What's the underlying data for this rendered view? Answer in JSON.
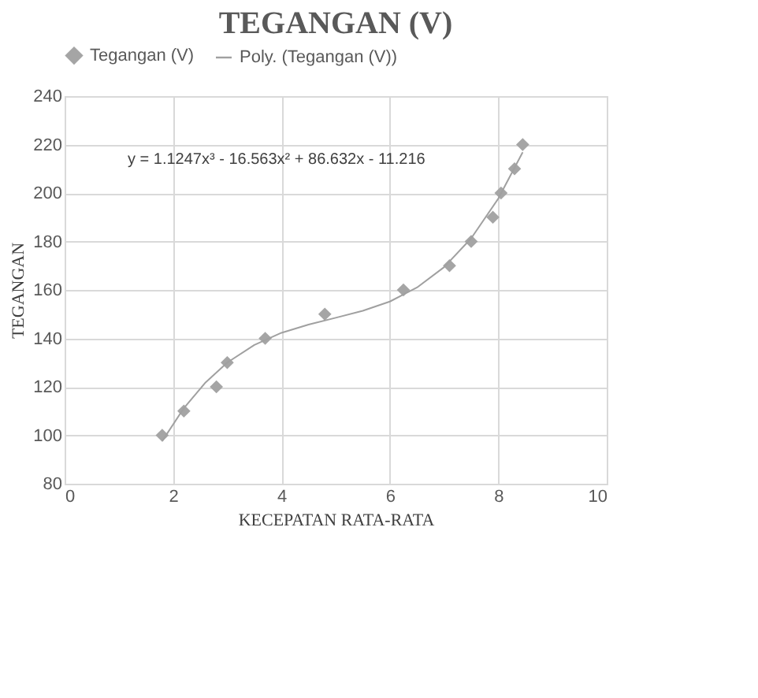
{
  "chart_data": {
    "type": "scatter",
    "title": "TEGANGAN (V)",
    "xlabel": "KECEPATAN RATA-RATA",
    "ylabel": "TEGANGAN",
    "xlim": [
      0,
      10
    ],
    "xticks": [
      0,
      2,
      4,
      6,
      8,
      10
    ],
    "ylim": [
      80,
      240
    ],
    "yticks": [
      80,
      100,
      120,
      140,
      160,
      180,
      200,
      220,
      240
    ],
    "grid": true,
    "legend": "top",
    "annotations": [
      "y = 1.1247x³ - 16.563x² + 86.632x - 11.216"
    ],
    "series": [
      {
        "name": "Tegangan (V)",
        "type": "scatter",
        "marker": "diamond",
        "color": "#a5a5a5",
        "x": [
          1.8,
          2.2,
          2.8,
          3.0,
          3.7,
          4.8,
          6.25,
          7.1,
          7.5,
          7.9,
          8.05,
          8.3,
          8.45
        ],
        "values": [
          100,
          110,
          120,
          130,
          140,
          150,
          160,
          170,
          180,
          190,
          200,
          210,
          220
        ]
      },
      {
        "name": "Poly. (Tegangan (V))",
        "type": "line",
        "line_style": "solid",
        "color": "#a0a0a0",
        "x": [
          1.8,
          2.2,
          2.6,
          3.0,
          3.5,
          4.0,
          4.5,
          5.0,
          5.5,
          6.0,
          6.5,
          7.0,
          7.5,
          8.0,
          8.45
        ],
        "values": [
          97.6,
          111.2,
          121.8,
          130.0,
          137.3,
          142.3,
          145.7,
          148.5,
          151.4,
          155.2,
          161.0,
          169.4,
          181.3,
          197.7,
          216.8
        ]
      }
    ]
  }
}
